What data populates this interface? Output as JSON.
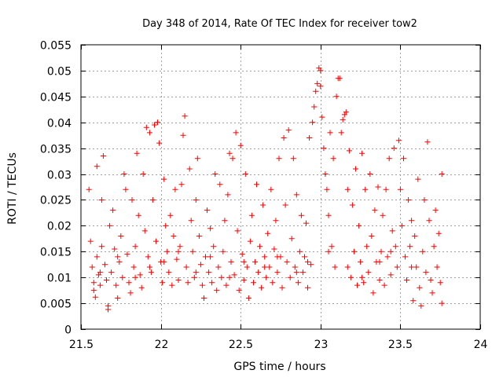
{
  "chart_data": {
    "type": "scatter",
    "title": "Day 348 of 2014, Rate Of TEC Index for receiver tow2",
    "xlabel": "GPS time / hours",
    "ylabel": "ROTI / TECUs",
    "xlim": [
      21.5,
      24
    ],
    "ylim": [
      0,
      0.055
    ],
    "xticks": [
      21.5,
      22,
      22.5,
      23,
      23.5,
      24
    ],
    "xtick_labels": [
      "21.5",
      "22",
      "22.5",
      "23",
      "23.5",
      "24"
    ],
    "yticks": [
      0,
      0.005,
      0.01,
      0.015,
      0.02,
      0.025,
      0.03,
      0.035,
      0.04,
      0.045,
      0.05,
      0.055
    ],
    "ytick_labels": [
      "0",
      "0.005",
      "0.01",
      "0.015",
      "0.02",
      "0.025",
      "0.03",
      "0.035",
      "0.04",
      "0.045",
      "0.05",
      "0.055"
    ],
    "grid": true,
    "marker": "+",
    "color": "#ff0000",
    "series": [
      {
        "name": "tow2",
        "points": [
          [
            21.55,
            0.027
          ],
          [
            21.56,
            0.017
          ],
          [
            21.57,
            0.012
          ],
          [
            21.58,
            0.009
          ],
          [
            21.58,
            0.0075
          ],
          [
            21.59,
            0.0062
          ],
          [
            21.6,
            0.0315
          ],
          [
            21.6,
            0.014
          ],
          [
            21.61,
            0.0105
          ],
          [
            21.62,
            0.0085
          ],
          [
            21.63,
            0.025
          ],
          [
            21.63,
            0.016
          ],
          [
            21.64,
            0.0335
          ],
          [
            21.65,
            0.0125
          ],
          [
            21.66,
            0.0095
          ],
          [
            21.67,
            0.0045
          ],
          [
            21.67,
            0.0038
          ],
          [
            21.68,
            0.02
          ],
          [
            21.69,
            0.011
          ],
          [
            21.7,
            0.023
          ],
          [
            21.71,
            0.0155
          ],
          [
            21.72,
            0.0085
          ],
          [
            21.73,
            0.006
          ],
          [
            21.74,
            0.013
          ],
          [
            21.75,
            0.018
          ],
          [
            21.76,
            0.01
          ],
          [
            21.77,
            0.03
          ],
          [
            21.78,
            0.027
          ],
          [
            21.79,
            0.0145
          ],
          [
            21.8,
            0.009
          ],
          [
            21.81,
            0.007
          ],
          [
            21.82,
            0.025
          ],
          [
            21.83,
            0.012
          ],
          [
            21.84,
            0.016
          ],
          [
            21.85,
            0.034
          ],
          [
            21.86,
            0.022
          ],
          [
            21.87,
            0.0105
          ],
          [
            21.88,
            0.008
          ],
          [
            21.89,
            0.03
          ],
          [
            21.9,
            0.019
          ],
          [
            21.91,
            0.039
          ],
          [
            21.92,
            0.014
          ],
          [
            21.93,
            0.038
          ],
          [
            21.94,
            0.011
          ],
          [
            21.95,
            0.025
          ],
          [
            21.96,
            0.0395
          ],
          [
            21.97,
            0.017
          ],
          [
            21.98,
            0.04
          ],
          [
            21.99,
            0.036
          ],
          [
            22.0,
            0.013
          ],
          [
            22.01,
            0.009
          ],
          [
            22.02,
            0.029
          ],
          [
            22.03,
            0.02
          ],
          [
            22.04,
            0.015
          ],
          [
            22.05,
            0.011
          ],
          [
            22.06,
            0.022
          ],
          [
            22.07,
            0.0085
          ],
          [
            22.08,
            0.018
          ],
          [
            22.09,
            0.027
          ],
          [
            22.1,
            0.0135
          ],
          [
            22.11,
            0.0095
          ],
          [
            22.12,
            0.016
          ],
          [
            22.13,
            0.028
          ],
          [
            22.14,
            0.0375
          ],
          [
            22.15,
            0.0412
          ],
          [
            22.16,
            0.012
          ],
          [
            22.17,
            0.009
          ],
          [
            22.18,
            0.031
          ],
          [
            22.19,
            0.021
          ],
          [
            22.2,
            0.015
          ],
          [
            22.21,
            0.01
          ],
          [
            22.22,
            0.025
          ],
          [
            22.23,
            0.033
          ],
          [
            22.24,
            0.018
          ],
          [
            22.25,
            0.0125
          ],
          [
            22.26,
            0.0085
          ],
          [
            22.27,
            0.006
          ],
          [
            22.28,
            0.014
          ],
          [
            22.29,
            0.023
          ],
          [
            22.3,
            0.011
          ],
          [
            22.31,
            0.0195
          ],
          [
            22.32,
            0.009
          ],
          [
            22.33,
            0.016
          ],
          [
            22.34,
            0.03
          ],
          [
            22.35,
            0.0075
          ],
          [
            22.36,
            0.012
          ],
          [
            22.37,
            0.028
          ],
          [
            22.38,
            0.01
          ],
          [
            22.39,
            0.015
          ],
          [
            22.4,
            0.021
          ],
          [
            22.41,
            0.0085
          ],
          [
            22.42,
            0.026
          ],
          [
            22.43,
            0.034
          ],
          [
            22.44,
            0.013
          ],
          [
            22.45,
            0.033
          ],
          [
            22.46,
            0.0105
          ],
          [
            22.47,
            0.038
          ],
          [
            22.48,
            0.019
          ],
          [
            22.49,
            0.0075
          ],
          [
            22.5,
            0.0355
          ],
          [
            22.51,
            0.0145
          ],
          [
            22.52,
            0.0095
          ],
          [
            22.53,
            0.03
          ],
          [
            22.54,
            0.012
          ],
          [
            22.55,
            0.006
          ],
          [
            22.56,
            0.017
          ],
          [
            22.57,
            0.022
          ],
          [
            22.58,
            0.009
          ],
          [
            22.59,
            0.013
          ],
          [
            22.6,
            0.028
          ],
          [
            22.61,
            0.011
          ],
          [
            22.62,
            0.016
          ],
          [
            22.63,
            0.008
          ],
          [
            22.64,
            0.024
          ],
          [
            22.65,
            0.014
          ],
          [
            22.66,
            0.01
          ],
          [
            22.67,
            0.0185
          ],
          [
            22.68,
            0.012
          ],
          [
            22.69,
            0.027
          ],
          [
            22.7,
            0.009
          ],
          [
            22.71,
            0.0155
          ],
          [
            22.72,
            0.021
          ],
          [
            22.73,
            0.011
          ],
          [
            22.74,
            0.033
          ],
          [
            22.75,
            0.014
          ],
          [
            22.76,
            0.008
          ],
          [
            22.77,
            0.037
          ],
          [
            22.78,
            0.024
          ],
          [
            22.79,
            0.013
          ],
          [
            22.8,
            0.0385
          ],
          [
            22.81,
            0.01
          ],
          [
            22.82,
            0.0175
          ],
          [
            22.83,
            0.033
          ],
          [
            22.84,
            0.012
          ],
          [
            22.85,
            0.026
          ],
          [
            22.86,
            0.009
          ],
          [
            22.87,
            0.015
          ],
          [
            22.88,
            0.022
          ],
          [
            22.89,
            0.011
          ],
          [
            22.9,
            0.014
          ],
          [
            22.91,
            0.0205
          ],
          [
            22.92,
            0.008
          ],
          [
            22.93,
            0.037
          ],
          [
            22.94,
            0.0125
          ],
          [
            22.95,
            0.04
          ],
          [
            22.96,
            0.043
          ],
          [
            22.97,
            0.046
          ],
          [
            22.98,
            0.0475
          ],
          [
            22.99,
            0.0505
          ],
          [
            23.0,
            0.05
          ],
          [
            23.0,
            0.047
          ],
          [
            23.01,
            0.041
          ],
          [
            23.02,
            0.035
          ],
          [
            23.03,
            0.03
          ],
          [
            23.04,
            0.027
          ],
          [
            23.05,
            0.022
          ],
          [
            23.06,
            0.038
          ],
          [
            23.07,
            0.016
          ],
          [
            23.08,
            0.033
          ],
          [
            23.09,
            0.012
          ],
          [
            23.1,
            0.045
          ],
          [
            23.11,
            0.0485
          ],
          [
            23.12,
            0.0485
          ],
          [
            23.13,
            0.038
          ],
          [
            23.14,
            0.0405
          ],
          [
            23.15,
            0.0415
          ],
          [
            23.16,
            0.042
          ],
          [
            23.17,
            0.027
          ],
          [
            23.18,
            0.0345
          ],
          [
            23.19,
            0.01
          ],
          [
            23.2,
            0.024
          ],
          [
            23.21,
            0.015
          ],
          [
            23.22,
            0.031
          ],
          [
            23.23,
            0.0085
          ],
          [
            23.24,
            0.02
          ],
          [
            23.25,
            0.013
          ],
          [
            23.26,
            0.034
          ],
          [
            23.27,
            0.009
          ],
          [
            23.28,
            0.027
          ],
          [
            23.29,
            0.016
          ],
          [
            23.3,
            0.011
          ],
          [
            23.31,
            0.03
          ],
          [
            23.32,
            0.018
          ],
          [
            23.33,
            0.007
          ],
          [
            23.34,
            0.023
          ],
          [
            23.35,
            0.013
          ],
          [
            23.36,
            0.0275
          ],
          [
            23.37,
            0.0095
          ],
          [
            23.38,
            0.015
          ],
          [
            23.39,
            0.022
          ],
          [
            23.4,
            0.0085
          ],
          [
            23.41,
            0.027
          ],
          [
            23.42,
            0.014
          ],
          [
            23.43,
            0.033
          ],
          [
            23.44,
            0.0105
          ],
          [
            23.45,
            0.019
          ],
          [
            23.46,
            0.035
          ],
          [
            23.47,
            0.016
          ],
          [
            23.48,
            0.012
          ],
          [
            23.49,
            0.0365
          ],
          [
            23.5,
            0.027
          ],
          [
            23.51,
            0.02
          ],
          [
            23.52,
            0.033
          ],
          [
            23.53,
            0.014
          ],
          [
            23.54,
            0.0095
          ],
          [
            23.55,
            0.025
          ],
          [
            23.56,
            0.016
          ],
          [
            23.57,
            0.021
          ],
          [
            23.58,
            0.0055
          ],
          [
            23.59,
            0.018
          ],
          [
            23.6,
            0.012
          ],
          [
            23.61,
            0.029
          ],
          [
            23.62,
            0.008
          ],
          [
            23.63,
            0.0045
          ],
          [
            23.64,
            0.015
          ],
          [
            23.65,
            0.025
          ],
          [
            23.66,
            0.011
          ],
          [
            23.67,
            0.0362
          ],
          [
            23.68,
            0.021
          ],
          [
            23.69,
            0.0095
          ],
          [
            23.7,
            0.007
          ],
          [
            23.71,
            0.016
          ],
          [
            23.72,
            0.023
          ],
          [
            23.73,
            0.012
          ],
          [
            23.74,
            0.0185
          ],
          [
            23.75,
            0.009
          ],
          [
            23.76,
            0.03
          ],
          [
            23.76,
            0.005
          ],
          [
            23.57,
            0.012
          ],
          [
            23.44,
            0.015
          ],
          [
            23.37,
            0.013
          ],
          [
            23.26,
            0.01
          ],
          [
            23.17,
            0.012
          ],
          [
            23.05,
            0.015
          ],
          [
            22.92,
            0.013
          ],
          [
            22.85,
            0.011
          ],
          [
            22.73,
            0.014
          ],
          [
            22.65,
            0.012
          ],
          [
            22.52,
            0.013
          ],
          [
            22.43,
            0.01
          ],
          [
            22.31,
            0.014
          ],
          [
            22.22,
            0.011
          ],
          [
            22.11,
            0.015
          ],
          [
            22.02,
            0.013
          ],
          [
            21.93,
            0.012
          ],
          [
            21.84,
            0.01
          ],
          [
            21.73,
            0.014
          ],
          [
            21.62,
            0.011
          ]
        ]
      }
    ]
  }
}
